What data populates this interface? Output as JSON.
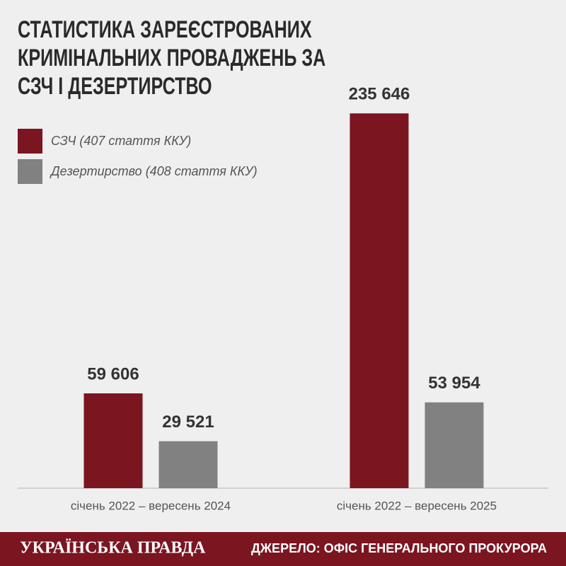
{
  "chart_data": {
    "type": "bar",
    "title": "СТАТИСТИКА ЗАРЕЄСТРОВАНИХ КРИМІНАЛЬНИХ ПРОВАДЖЕНЬ ЗА СЗЧ І ДЕЗЕРТИРСТВО",
    "categories": [
      "січень 2022 – вересень 2024",
      "січень 2022 – вересень 2025"
    ],
    "series": [
      {
        "name": "СЗЧ (407 стаття ККУ)",
        "color": "#7b1520",
        "values": [
          59606,
          235646
        ],
        "value_labels": [
          "59 606",
          "235 646"
        ]
      },
      {
        "name": "Дезертирство (408 стаття ККУ)",
        "color": "#818181",
        "values": [
          29521,
          53954
        ],
        "value_labels": [
          "29 521",
          "53 954"
        ]
      }
    ],
    "ylim": [
      0,
      250000
    ],
    "brand": "УКРАЇНСЬКА ПРАВДА",
    "source": "ДЖЕРЕЛО: ОФІС ГЕНЕРАЛЬНОГО ПРОКУРОРА"
  }
}
